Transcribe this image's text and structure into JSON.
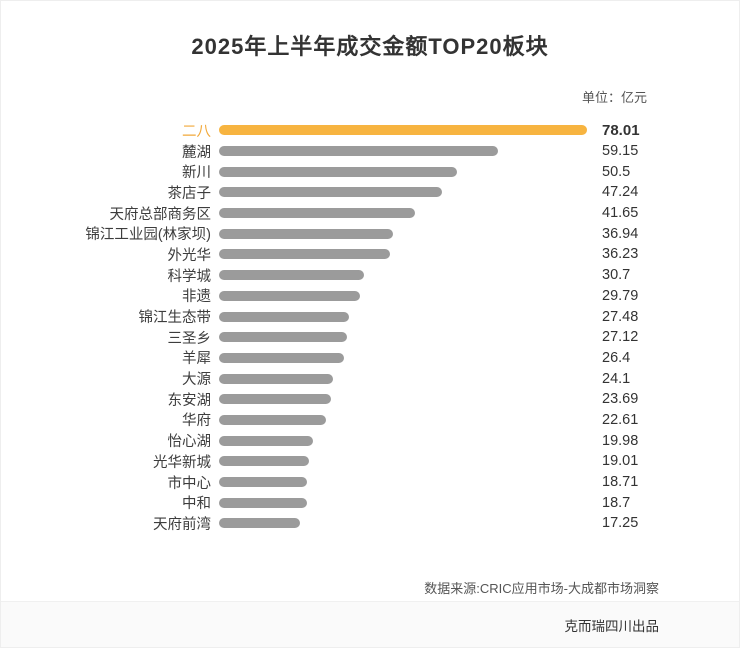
{
  "title": "2025年上半年成交金额TOP20板块",
  "unit_label": "单位：亿元",
  "footer": {
    "source": "数据来源:CRIC应用市场-大成都市场洞察",
    "producer": "克而瑞四川出品"
  },
  "colors": {
    "highlight": "#F7B440",
    "bar": "#9B9B9B"
  },
  "chart_data": {
    "type": "bar",
    "orientation": "horizontal",
    "title": "2025年上半年成交金额TOP20板块",
    "unit": "亿元",
    "xlim": [
      0,
      78.01
    ],
    "highlight_index": 0,
    "legend": false,
    "grid": false,
    "categories": [
      "二八",
      "麓湖",
      "新川",
      "茶店子",
      "天府总部商务区",
      "锦江工业园(林家坝)",
      "外光华",
      "科学城",
      "非遗",
      "锦江生态带",
      "三圣乡",
      "羊犀",
      "大源",
      "东安湖",
      "华府",
      "怡心湖",
      "光华新城",
      "市中心",
      "中和",
      "天府前湾"
    ],
    "values": [
      78.01,
      59.15,
      50.5,
      47.24,
      41.65,
      36.94,
      36.23,
      30.7,
      29.79,
      27.48,
      27.12,
      26.4,
      24.1,
      23.69,
      22.61,
      19.98,
      19.01,
      18.71,
      18.7,
      17.25
    ]
  }
}
